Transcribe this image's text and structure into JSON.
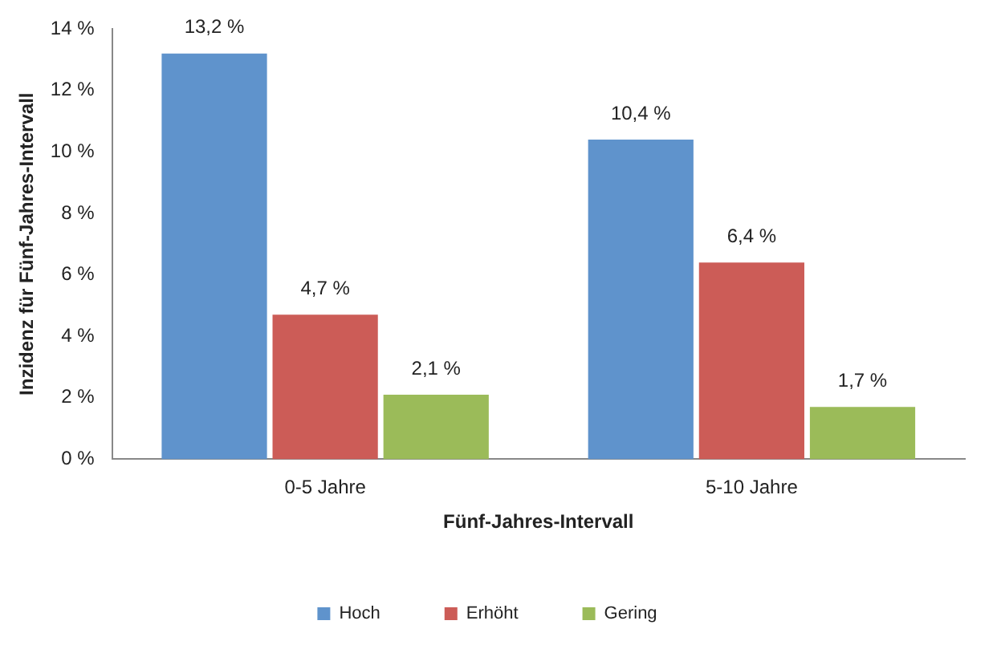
{
  "chart_data": {
    "type": "bar",
    "xlabel": "Fünf-Jahres-Intervall",
    "ylabel": "Inzidenz für Fünf-Jahres-Intervall",
    "categories": [
      "0-5 Jahre",
      "5-10 Jahre"
    ],
    "series": [
      {
        "name": "Hoch",
        "color": "#5f93cc",
        "values": [
          13.2,
          10.4
        ],
        "value_labels": [
          "13,2 %",
          "10,4 %"
        ]
      },
      {
        "name": "Erhöht",
        "color": "#cc5c57",
        "values": [
          4.7,
          6.4
        ],
        "value_labels": [
          "4,7 %",
          "6,4 %"
        ]
      },
      {
        "name": "Gering",
        "color": "#9bbb59",
        "values": [
          2.1,
          1.7
        ],
        "value_labels": [
          "2,1 %",
          "1,7 %"
        ]
      }
    ],
    "ylim": [
      0,
      14
    ],
    "yticks": [
      {
        "value": 0,
        "label": "0 %"
      },
      {
        "value": 2,
        "label": "2 %"
      },
      {
        "value": 4,
        "label": "4 %"
      },
      {
        "value": 6,
        "label": "6 %"
      },
      {
        "value": 8,
        "label": "8 %"
      },
      {
        "value": 10,
        "label": "10 %"
      },
      {
        "value": 12,
        "label": "12 %"
      },
      {
        "value": 14,
        "label": "14 %"
      }
    ],
    "legend": "bottom"
  }
}
